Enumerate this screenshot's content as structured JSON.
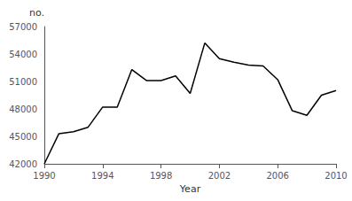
{
  "chart_data": {
    "type": "line",
    "xlabel": "Year",
    "ylabel": "no.",
    "x": [
      1990,
      1991,
      1992,
      1993,
      1994,
      1995,
      1996,
      1997,
      1998,
      1999,
      2000,
      2001,
      2002,
      2003,
      2004,
      2005,
      2006,
      2007,
      2008,
      2009,
      2010
    ],
    "values": [
      42000,
      45300,
      45500,
      46000,
      48200,
      48200,
      52300,
      51100,
      51100,
      51600,
      49700,
      55200,
      53500,
      53100,
      52800,
      52700,
      51200,
      47800,
      47300,
      49500,
      50000
    ],
    "color": "#000000",
    "xlim": [
      1990,
      2010
    ],
    "ylim": [
      42000,
      57000
    ],
    "xticks": [
      1990,
      1994,
      1998,
      2002,
      2006,
      2010
    ],
    "yticks": [
      42000,
      45000,
      48000,
      51000,
      54000,
      57000
    ],
    "grid": false
  }
}
